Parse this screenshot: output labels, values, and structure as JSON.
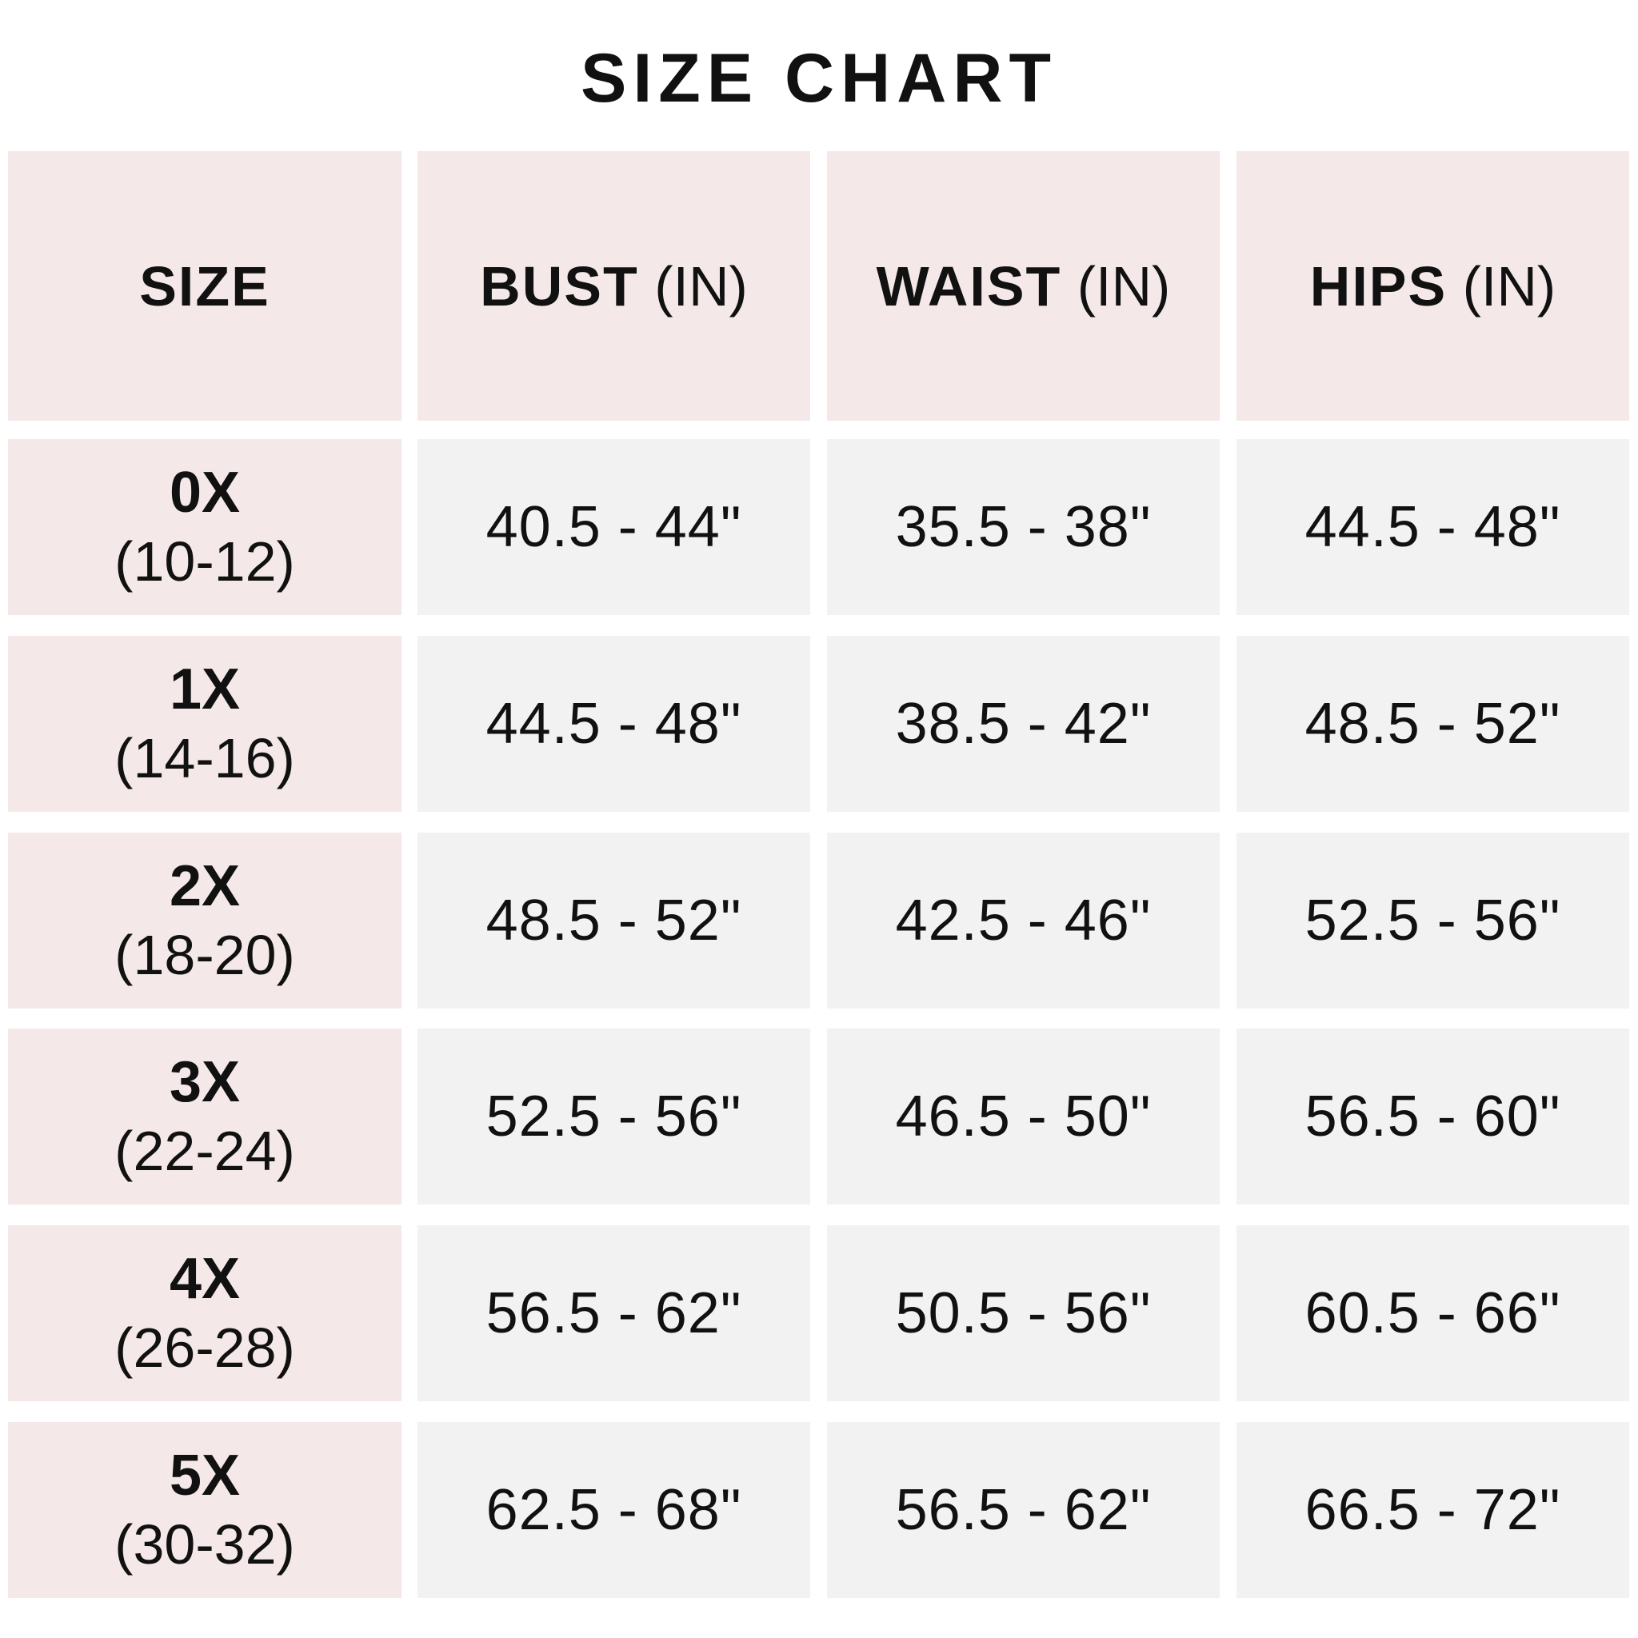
{
  "title": "SIZE CHART",
  "colors": {
    "header_bg": "#f4e9e8",
    "size_col_bg": "#f4e9e8",
    "value_bg": "#f2f2f2",
    "text": "#111111"
  },
  "headers": [
    {
      "label": "SIZE",
      "unit": ""
    },
    {
      "label": "BUST",
      "unit": "(IN)"
    },
    {
      "label": "WAIST",
      "unit": "(IN)"
    },
    {
      "label": "HIPS",
      "unit": "(IN)"
    }
  ],
  "rows": [
    {
      "size": "0X",
      "us": "(10-12)",
      "bust": "40.5 - 44\"",
      "waist": "35.5 - 38\"",
      "hips": "44.5 - 48\""
    },
    {
      "size": "1X",
      "us": "(14-16)",
      "bust": "44.5 - 48\"",
      "waist": "38.5 - 42\"",
      "hips": "48.5 - 52\""
    },
    {
      "size": "2X",
      "us": "(18-20)",
      "bust": "48.5 - 52\"",
      "waist": "42.5 - 46\"",
      "hips": "52.5 - 56\""
    },
    {
      "size": "3X",
      "us": "(22-24)",
      "bust": "52.5 - 56\"",
      "waist": "46.5 - 50\"",
      "hips": "56.5 - 60\""
    },
    {
      "size": "4X",
      "us": "(26-28)",
      "bust": "56.5 - 62\"",
      "waist": "50.5 - 56\"",
      "hips": "60.5 - 66\""
    },
    {
      "size": "5X",
      "us": "(30-32)",
      "bust": "62.5 - 68\"",
      "waist": "56.5 - 62\"",
      "hips": "66.5 - 72\""
    }
  ]
}
